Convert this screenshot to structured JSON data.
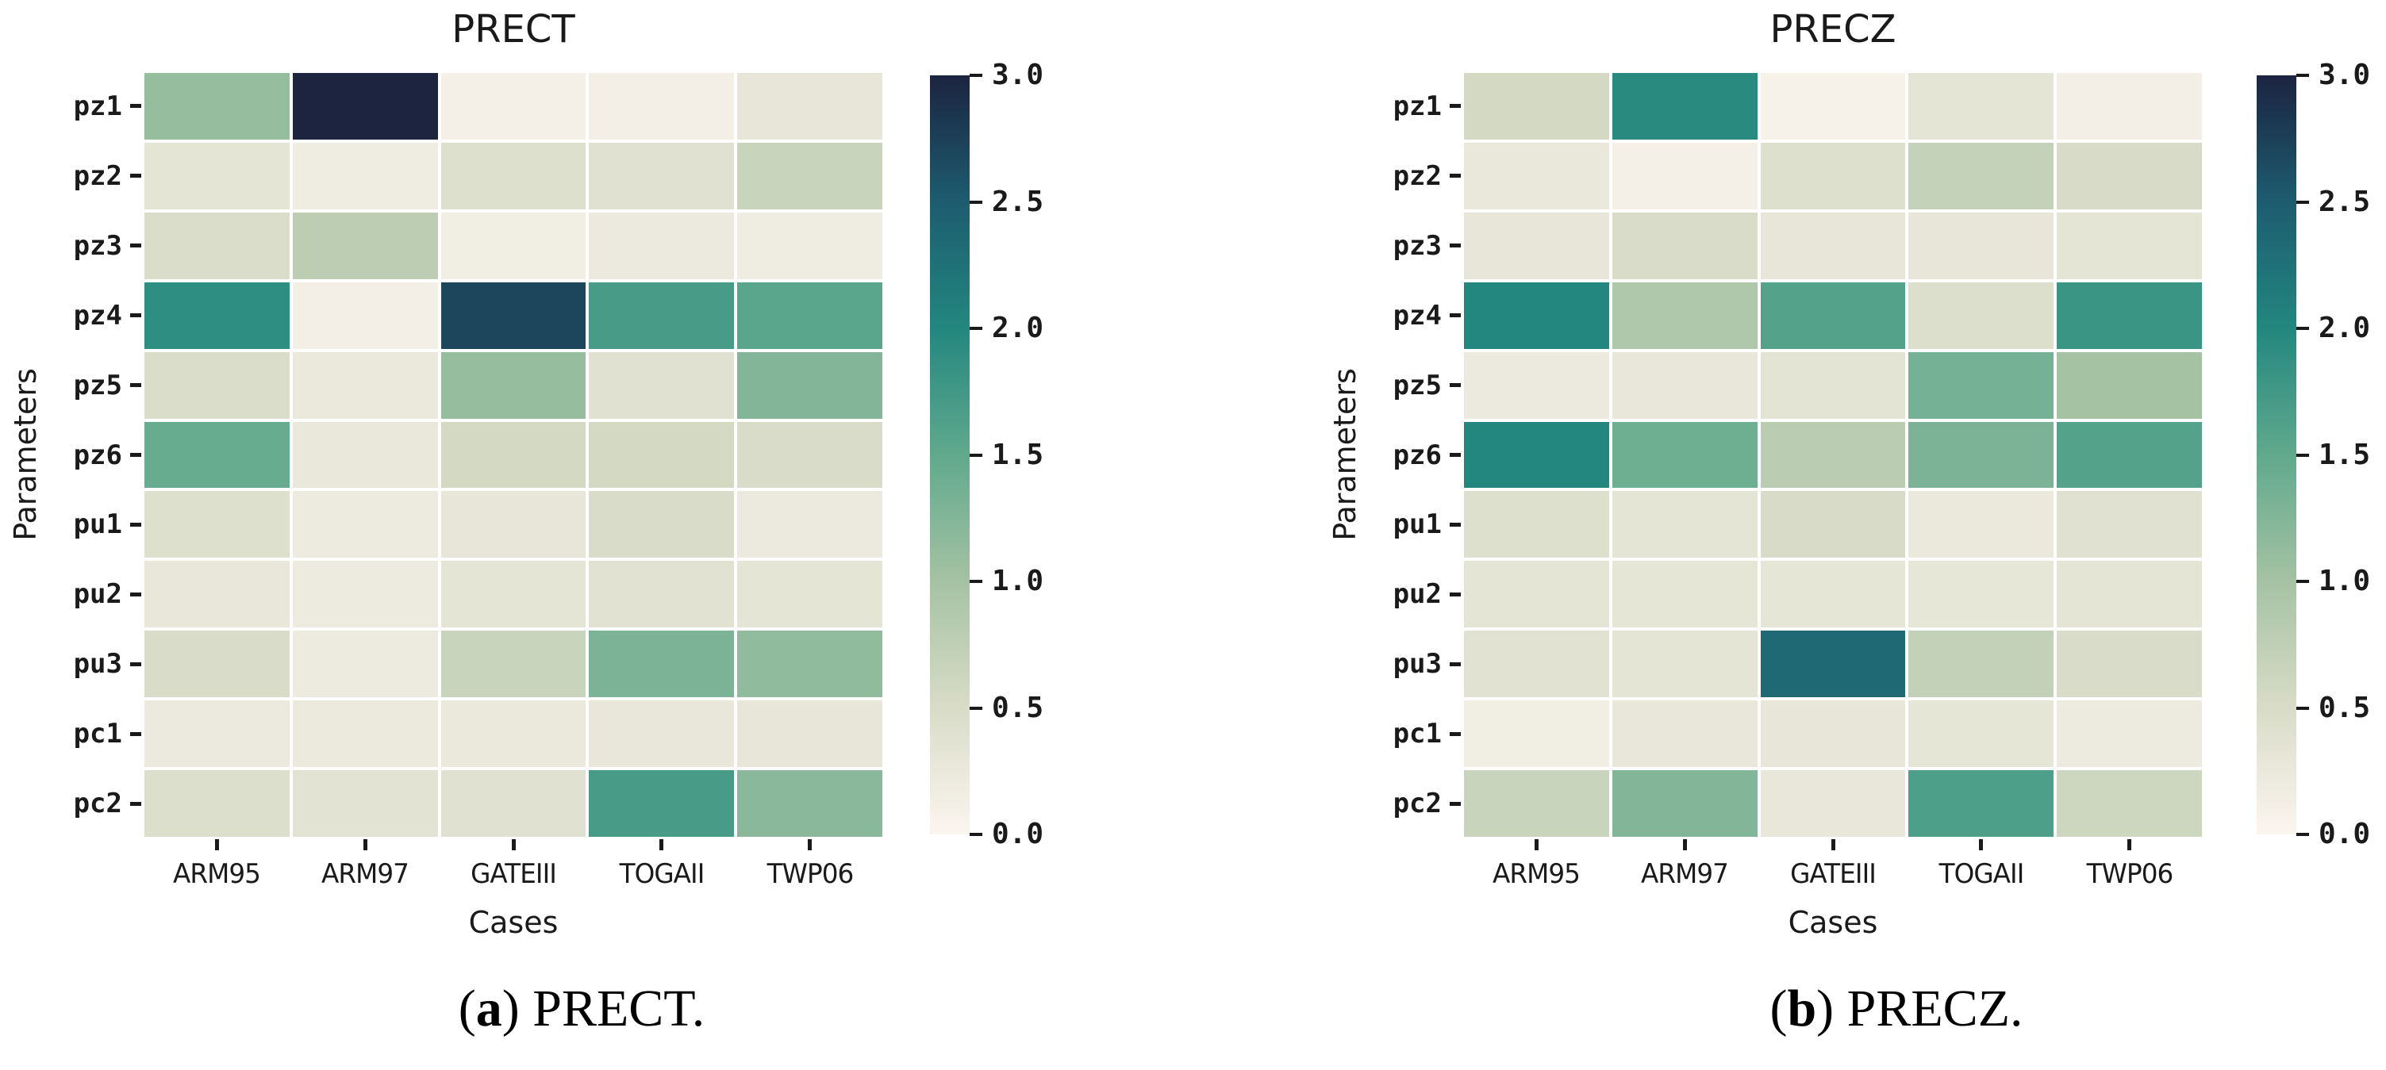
{
  "page": {
    "background": "#ffffff",
    "text_color": "#1a1a1a"
  },
  "colormap": {
    "stops": [
      {
        "value": 0.0,
        "color": "#fbf5ef"
      },
      {
        "value": 0.5,
        "color": "#d9dcc8"
      },
      {
        "value": 1.0,
        "color": "#a5c2a3"
      },
      {
        "value": 1.5,
        "color": "#60a98d"
      },
      {
        "value": 2.0,
        "color": "#23877f"
      },
      {
        "value": 2.5,
        "color": "#1d5c70"
      },
      {
        "value": 3.0,
        "color": "#1c2440"
      }
    ]
  },
  "chart_data": [
    {
      "type": "heatmap",
      "title": "PRECT",
      "xlabel": "Cases",
      "ylabel": "Parameters",
      "columns": [
        "ARM95",
        "ARM97",
        "GATEIII",
        "TOGAII",
        "TWP06"
      ],
      "rows": [
        "pz1",
        "pz2",
        "pz3",
        "pz4",
        "pz5",
        "pz6",
        "pu1",
        "pu2",
        "pu3",
        "pc1",
        "pc2"
      ],
      "values": [
        [
          1.1,
          3.0,
          0.1,
          0.12,
          0.3
        ],
        [
          0.33,
          0.18,
          0.42,
          0.4,
          0.65
        ],
        [
          0.48,
          0.78,
          0.15,
          0.22,
          0.18
        ],
        [
          1.9,
          0.12,
          2.7,
          1.7,
          1.55
        ],
        [
          0.48,
          0.25,
          1.1,
          0.4,
          1.25
        ],
        [
          1.45,
          0.27,
          0.55,
          0.55,
          0.5
        ],
        [
          0.42,
          0.2,
          0.3,
          0.5,
          0.22
        ],
        [
          0.28,
          0.2,
          0.32,
          0.38,
          0.32
        ],
        [
          0.5,
          0.2,
          0.65,
          1.3,
          1.15
        ],
        [
          0.22,
          0.23,
          0.25,
          0.28,
          0.3
        ],
        [
          0.45,
          0.37,
          0.4,
          1.7,
          1.2
        ]
      ],
      "vmin": 0.0,
      "vmax": 3.0,
      "colorbar_ticks": [
        0.0,
        0.5,
        1.0,
        1.5,
        2.0,
        2.5,
        3.0
      ],
      "colorbar_tick_labels": [
        "0.0",
        "0.5",
        "1.0",
        "1.5",
        "2.0",
        "2.5",
        "3.0"
      ],
      "legend_position": "right-colorbar",
      "grid": "off",
      "caption": {
        "open": "(",
        "marker": "a",
        "close": ") ",
        "label": "PRECT."
      }
    },
    {
      "type": "heatmap",
      "title": "PRECZ",
      "xlabel": "Cases",
      "ylabel": "Parameters",
      "columns": [
        "ARM95",
        "ARM97",
        "GATEIII",
        "TOGAII",
        "TWP06"
      ],
      "rows": [
        "pz1",
        "pz2",
        "pz3",
        "pz4",
        "pz5",
        "pz6",
        "pu1",
        "pu2",
        "pu3",
        "pc1",
        "pc2"
      ],
      "values": [
        [
          0.55,
          1.95,
          0.08,
          0.32,
          0.12
        ],
        [
          0.27,
          0.1,
          0.42,
          0.7,
          0.52
        ],
        [
          0.3,
          0.5,
          0.3,
          0.3,
          0.33
        ],
        [
          2.0,
          0.9,
          1.6,
          0.45,
          1.8
        ],
        [
          0.22,
          0.28,
          0.35,
          1.35,
          1.0
        ],
        [
          2.0,
          1.4,
          0.8,
          1.3,
          1.6
        ],
        [
          0.42,
          0.33,
          0.52,
          0.25,
          0.4
        ],
        [
          0.32,
          0.31,
          0.31,
          0.29,
          0.33
        ],
        [
          0.38,
          0.33,
          2.35,
          0.72,
          0.5
        ],
        [
          0.15,
          0.28,
          0.3,
          0.31,
          0.2
        ],
        [
          0.65,
          1.25,
          0.28,
          1.65,
          0.62
        ]
      ],
      "vmin": 0.0,
      "vmax": 3.0,
      "colorbar_ticks": [
        0.0,
        0.5,
        1.0,
        1.5,
        2.0,
        2.5,
        3.0
      ],
      "colorbar_tick_labels": [
        "0.0",
        "0.5",
        "1.0",
        "1.5",
        "2.0",
        "2.5",
        "3.0"
      ],
      "legend_position": "right-colorbar",
      "grid": "off",
      "caption": {
        "open": "(",
        "marker": "b",
        "close": ") ",
        "label": "PRECZ."
      }
    }
  ]
}
